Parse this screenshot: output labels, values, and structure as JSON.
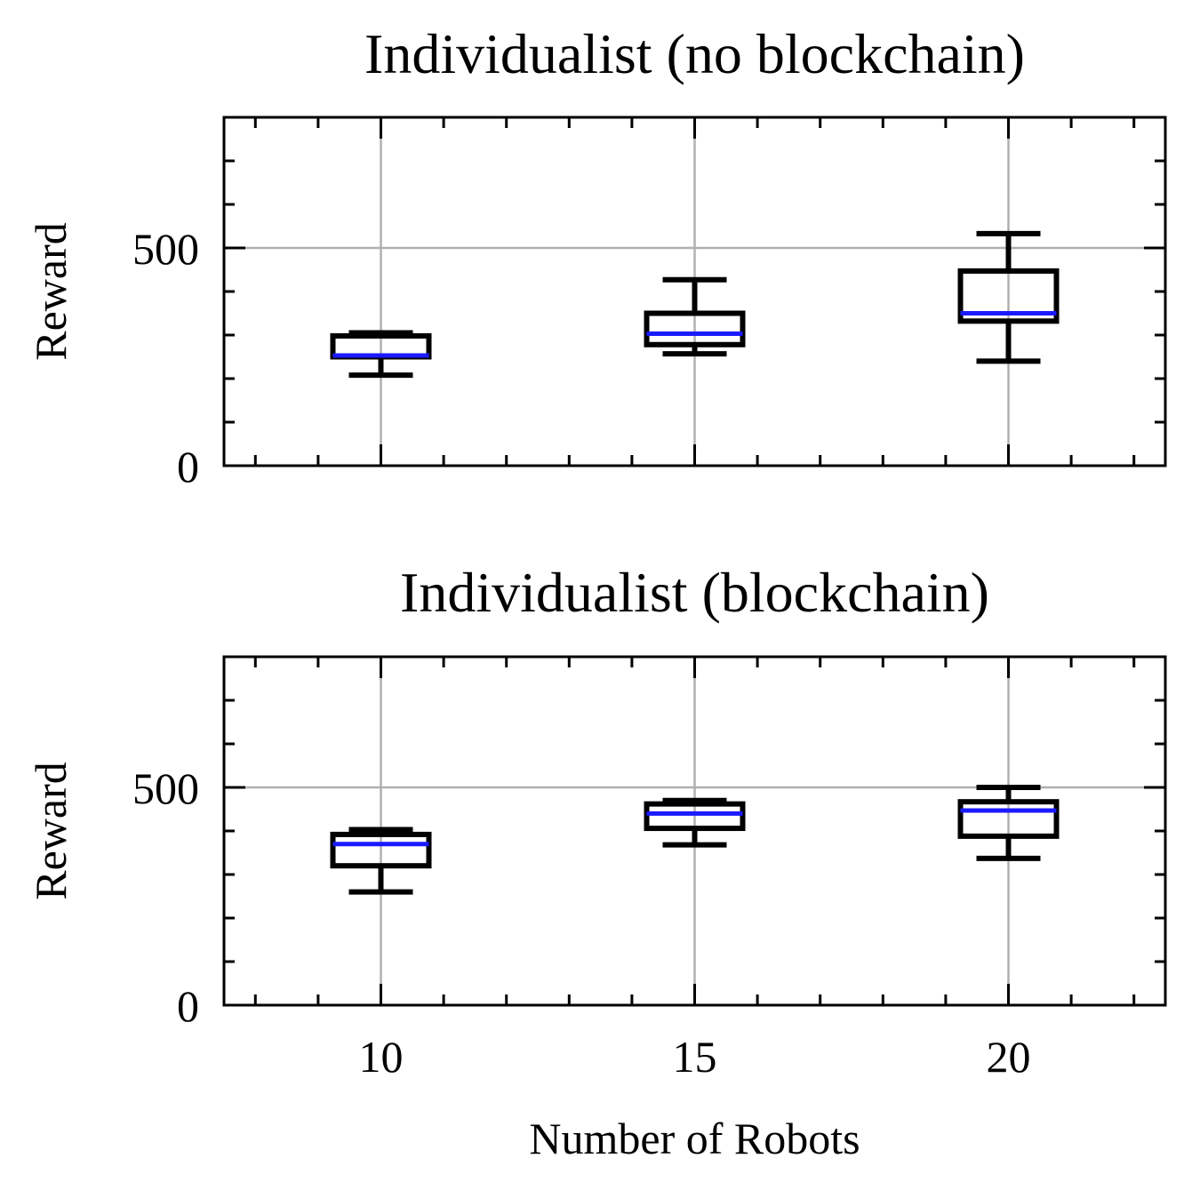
{
  "chart_data": [
    {
      "type": "box",
      "title": "Individualist (no blockchain)",
      "xlabel": "",
      "ylabel": "Reward",
      "categories": [
        "10",
        "15",
        "20"
      ],
      "x": [
        10,
        15,
        20
      ],
      "xlim": [
        7.5,
        22.5
      ],
      "ylim": [
        0,
        800
      ],
      "yticks": [
        0,
        500
      ],
      "grid": true,
      "boxes": [
        {
          "x": 10,
          "whisker_low": 208,
          "q1": 250,
          "median": 253,
          "q3": 298,
          "whisker_high": 305
        },
        {
          "x": 15,
          "whisker_low": 257,
          "q1": 278,
          "median": 303,
          "q3": 350,
          "whisker_high": 427
        },
        {
          "x": 20,
          "whisker_low": 240,
          "q1": 332,
          "median": 350,
          "q3": 447,
          "whisker_high": 533
        }
      ]
    },
    {
      "type": "box",
      "title": "Individualist (blockchain)",
      "xlabel": "Number of Robots",
      "ylabel": "Reward",
      "categories": [
        "10",
        "15",
        "20"
      ],
      "x": [
        10,
        15,
        20
      ],
      "xlim": [
        7.5,
        22.5
      ],
      "ylim": [
        0,
        800
      ],
      "yticks": [
        0,
        500
      ],
      "grid": true,
      "boxes": [
        {
          "x": 10,
          "whisker_low": 260,
          "q1": 320,
          "median": 370,
          "q3": 392,
          "whisker_high": 403
        },
        {
          "x": 15,
          "whisker_low": 368,
          "q1": 406,
          "median": 440,
          "q3": 462,
          "whisker_high": 470
        },
        {
          "x": 20,
          "whisker_low": 337,
          "q1": 388,
          "median": 447,
          "q3": 467,
          "whisker_high": 500
        }
      ]
    }
  ],
  "colors": {
    "box": "#000000",
    "median": "#1a1aff",
    "grid": "#b0b0b0",
    "axes": "#000000"
  }
}
